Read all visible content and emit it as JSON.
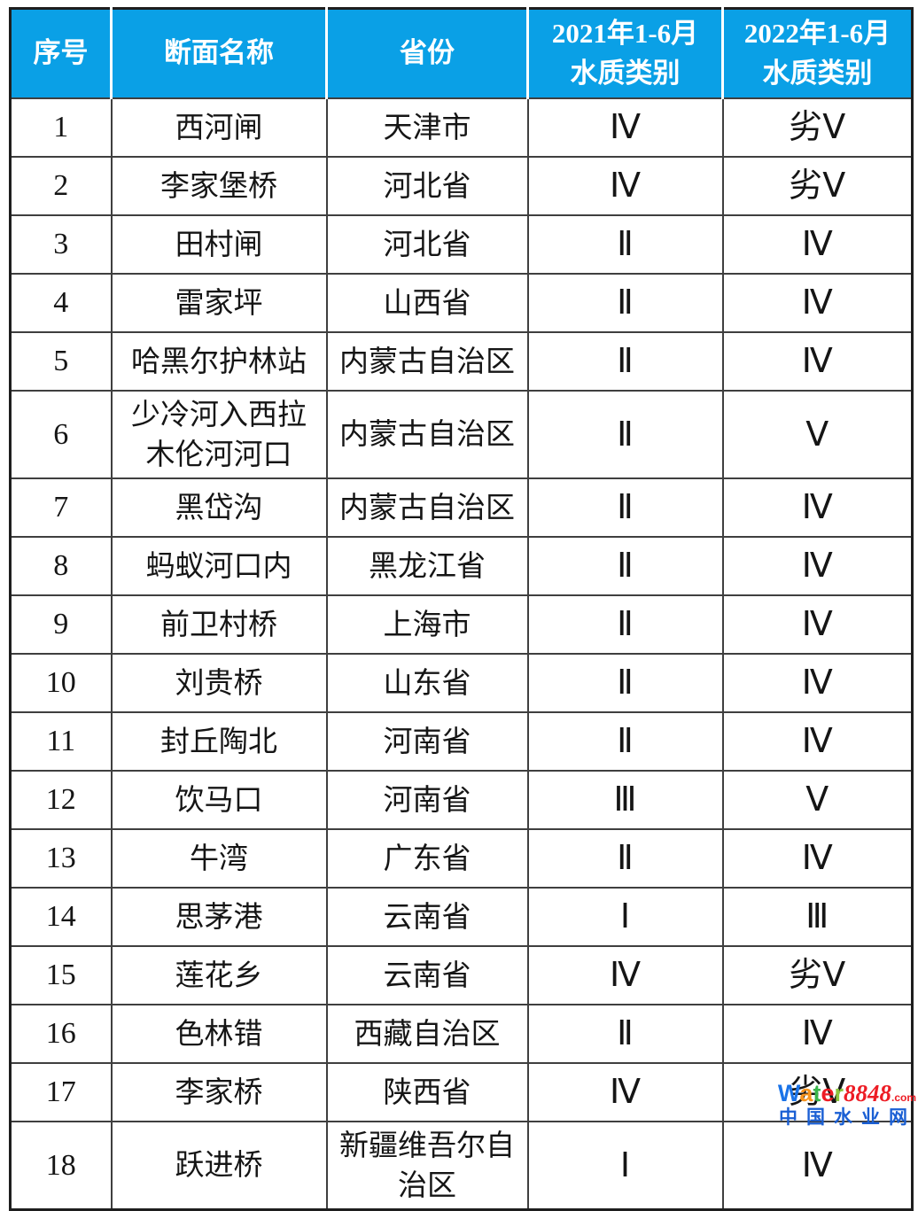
{
  "colors": {
    "header_bg": "#0aa0e6",
    "header_text": "#ffffff",
    "border_inner": "#3f3f3f",
    "border_outer": "#1e1e1e",
    "body_text": "#151515"
  },
  "header": {
    "columns": [
      "序号",
      "断面名称",
      "省份",
      "2021年1-6月\n水质类别",
      "2022年1-6月\n水质类别"
    ]
  },
  "chart_data": {
    "type": "table",
    "columns": [
      "序号",
      "断面名称",
      "省份",
      "2021年1-6月水质类别",
      "2022年1-6月水质类别"
    ],
    "rows": [
      [
        "1",
        "西河闸",
        "天津市",
        "Ⅳ",
        "劣Ⅴ"
      ],
      [
        "2",
        "李家堡桥",
        "河北省",
        "Ⅳ",
        "劣Ⅴ"
      ],
      [
        "3",
        "田村闸",
        "河北省",
        "Ⅱ",
        "Ⅳ"
      ],
      [
        "4",
        "雷家坪",
        "山西省",
        "Ⅱ",
        "Ⅳ"
      ],
      [
        "5",
        "哈黑尔护林站",
        "内蒙古自治区",
        "Ⅱ",
        "Ⅳ"
      ],
      [
        "6",
        "少冷河入西拉\n木伦河河口",
        "内蒙古自治区",
        "Ⅱ",
        "Ⅴ"
      ],
      [
        "7",
        "黑岱沟",
        "内蒙古自治区",
        "Ⅱ",
        "Ⅳ"
      ],
      [
        "8",
        "蚂蚁河口内",
        "黑龙江省",
        "Ⅱ",
        "Ⅳ"
      ],
      [
        "9",
        "前卫村桥",
        "上海市",
        "Ⅱ",
        "Ⅳ"
      ],
      [
        "10",
        "刘贵桥",
        "山东省",
        "Ⅱ",
        "Ⅳ"
      ],
      [
        "11",
        "封丘陶北",
        "河南省",
        "Ⅱ",
        "Ⅳ"
      ],
      [
        "12",
        "饮马口",
        "河南省",
        "Ⅲ",
        "Ⅴ"
      ],
      [
        "13",
        "牛湾",
        "广东省",
        "Ⅱ",
        "Ⅳ"
      ],
      [
        "14",
        "思茅港",
        "云南省",
        "Ⅰ",
        "Ⅲ"
      ],
      [
        "15",
        "莲花乡",
        "云南省",
        "Ⅳ",
        "劣Ⅴ"
      ],
      [
        "16",
        "色林错",
        "西藏自治区",
        "Ⅱ",
        "Ⅳ"
      ],
      [
        "17",
        "李家桥",
        "陕西省",
        "Ⅳ",
        "劣Ⅴ"
      ],
      [
        "18",
        "跃进桥",
        "新疆维吾尔自\n治区",
        "Ⅰ",
        "Ⅳ"
      ]
    ]
  },
  "watermark": {
    "letters": [
      {
        "char": "W",
        "color": "#1a73e8"
      },
      {
        "char": "a",
        "color": "#f7941d"
      },
      {
        "char": "t",
        "color": "#39b54a"
      },
      {
        "char": "e",
        "color": "#ed1c24"
      },
      {
        "char": "r",
        "color": "#8dc63f"
      }
    ],
    "digits": "8848",
    "digits_color": "#ed1c24",
    "suffix": ".com",
    "suffix_color": "#ed1c24",
    "site_name": "中国水业网",
    "site_name_color": "#1a5fd4"
  }
}
